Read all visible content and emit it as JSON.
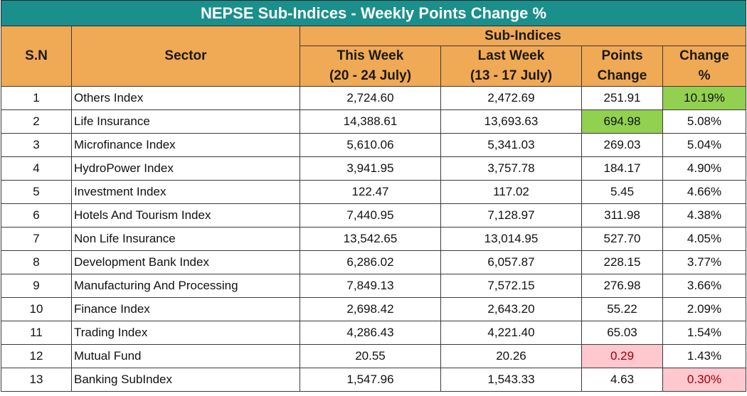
{
  "title": "NEPSE Sub-Indices - Weekly Points Change %",
  "headers": {
    "sn": "S.N",
    "sector": "Sector",
    "group": "Sub-Indices",
    "this_week": {
      "line1": "This Week",
      "line2": "(20 - 24 July)"
    },
    "last_week": {
      "line1": "Last Week",
      "line2": "(13 - 17 July)"
    },
    "points_change": {
      "line1": "Points",
      "line2": "Change"
    },
    "change_pct": {
      "line1": "Change",
      "line2": "%"
    }
  },
  "rows": [
    {
      "sn": "1",
      "sector": "Others Index",
      "this_week": "2,724.60",
      "last_week": "2,472.69",
      "points_change": "251.91",
      "change_pct": "10.19%"
    },
    {
      "sn": "2",
      "sector": "Life Insurance",
      "this_week": "14,388.61",
      "last_week": "13,693.63",
      "points_change": "694.98",
      "change_pct": "5.08%"
    },
    {
      "sn": "3",
      "sector": "Microfinance Index",
      "this_week": "5,610.06",
      "last_week": "5,341.03",
      "points_change": "269.03",
      "change_pct": "5.04%"
    },
    {
      "sn": "4",
      "sector": "HydroPower Index",
      "this_week": "3,941.95",
      "last_week": "3,757.78",
      "points_change": "184.17",
      "change_pct": "4.90%"
    },
    {
      "sn": "5",
      "sector": "Investment Index",
      "this_week": "122.47",
      "last_week": "117.02",
      "points_change": "5.45",
      "change_pct": "4.66%"
    },
    {
      "sn": "6",
      "sector": "Hotels And Tourism Index",
      "this_week": "7,440.95",
      "last_week": "7,128.97",
      "points_change": "311.98",
      "change_pct": "4.38%"
    },
    {
      "sn": "7",
      "sector": "Non Life Insurance",
      "this_week": "13,542.65",
      "last_week": "13,014.95",
      "points_change": "527.70",
      "change_pct": "4.05%"
    },
    {
      "sn": "8",
      "sector": "Development Bank Index",
      "this_week": "6,286.02",
      "last_week": "6,057.87",
      "points_change": "228.15",
      "change_pct": "3.77%"
    },
    {
      "sn": "9",
      "sector": "Manufacturing And Processing",
      "this_week": "7,849.13",
      "last_week": "7,572.15",
      "points_change": "276.98",
      "change_pct": "3.66%"
    },
    {
      "sn": "10",
      "sector": "Finance Index",
      "this_week": "2,698.42",
      "last_week": "2,643.20",
      "points_change": "55.22",
      "change_pct": "2.09%"
    },
    {
      "sn": "11",
      "sector": "Trading Index",
      "this_week": "4,286.43",
      "last_week": "4,221.40",
      "points_change": "65.03",
      "change_pct": "1.54%"
    },
    {
      "sn": "12",
      "sector": "Mutual Fund",
      "this_week": "20.55",
      "last_week": "20.26",
      "points_change": "0.29",
      "change_pct": "1.43%"
    },
    {
      "sn": "13",
      "sector": "Banking SubIndex",
      "this_week": "1,547.96",
      "last_week": "1,543.33",
      "points_change": "4.63",
      "change_pct": "0.30%"
    }
  ],
  "highlights": {
    "max_change_pct_row": "1",
    "max_points_change_row": "2",
    "min_points_change_row": "12",
    "min_change_pct_row": "13",
    "green": "#92d050",
    "red_fill": "#ffc7ce",
    "red_text": "#9c0006"
  },
  "colors": {
    "title_bg": "#1a8f8c",
    "header_bg": "#f0a955"
  }
}
